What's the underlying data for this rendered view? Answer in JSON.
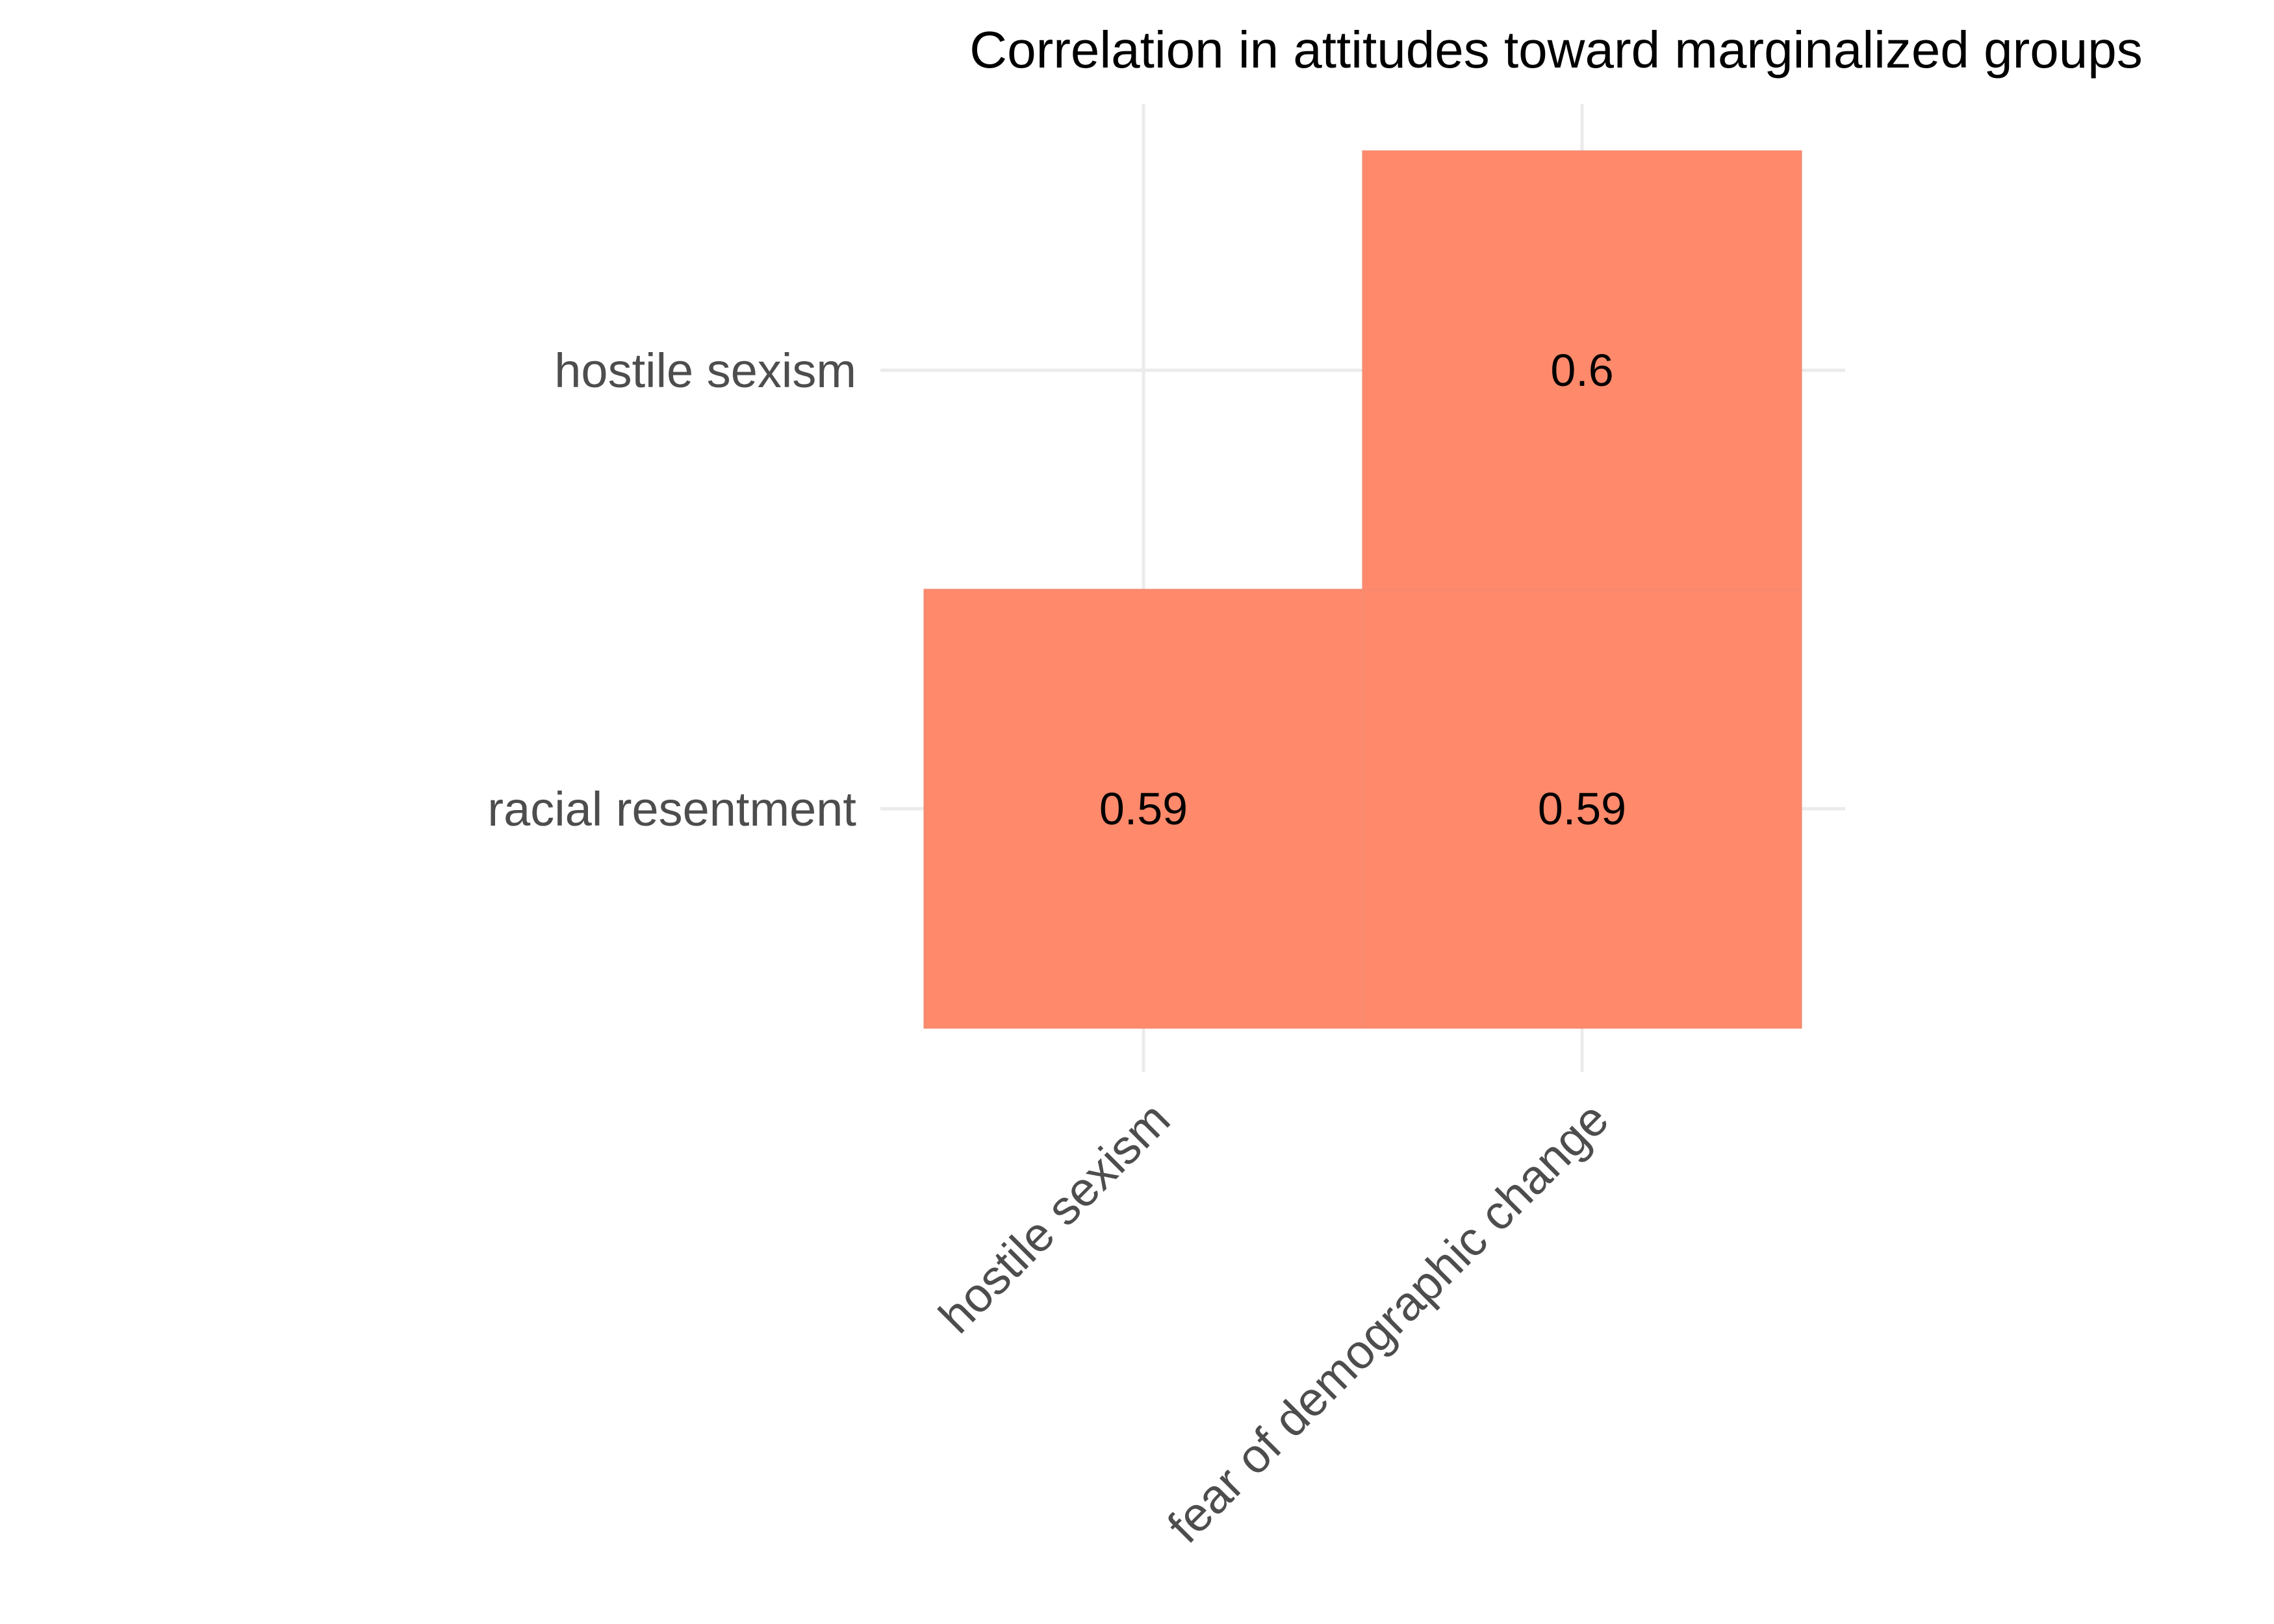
{
  "chart_data": {
    "type": "heatmap",
    "title": "Correlation in attitudes toward marginalized groups",
    "x_categories": [
      "hostile sexism",
      "fear of demographic change"
    ],
    "y_categories": [
      "racial resentment",
      "hostile sexism"
    ],
    "cells": [
      {
        "x": "hostile sexism",
        "y": "racial resentment",
        "value": 0.59,
        "label": "0.59"
      },
      {
        "x": "fear of demographic change",
        "y": "racial resentment",
        "value": 0.59,
        "label": "0.59"
      },
      {
        "x": "fear of demographic change",
        "y": "hostile sexism",
        "value": 0.6,
        "label": "0.6"
      }
    ],
    "fill_color": "#ff896b",
    "grid": true,
    "legend": "none"
  }
}
